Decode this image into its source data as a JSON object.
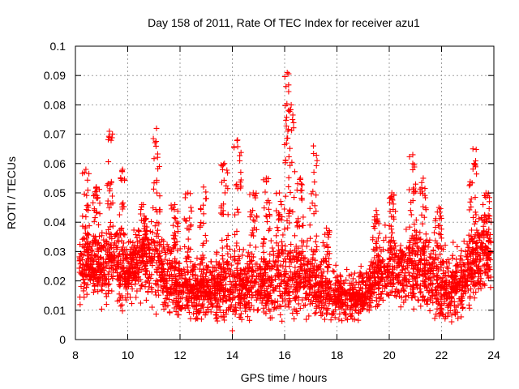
{
  "chart_data": {
    "type": "scatter",
    "title": "Day 158 of 2011, Rate Of TEC Index for receiver azu1",
    "xlabel": "GPS time / hours",
    "ylabel": "ROTI / TECUs",
    "xlim": [
      8,
      24
    ],
    "ylim": [
      0,
      0.1
    ],
    "x_ticks": [
      "8",
      "10",
      "12",
      "14",
      "16",
      "18",
      "20",
      "22",
      "24"
    ],
    "y_ticks": [
      "0",
      "0.01",
      "0.02",
      "0.03",
      "0.04",
      "0.05",
      "0.06",
      "0.07",
      "0.08",
      "0.09",
      "0.1"
    ],
    "grid": true,
    "marker": "+",
    "color": "#ff0000",
    "profile_points": [
      [
        8.0,
        0.024
      ],
      [
        8.5,
        0.026
      ],
      [
        9.0,
        0.025
      ],
      [
        9.5,
        0.027
      ],
      [
        10.0,
        0.022
      ],
      [
        10.5,
        0.028
      ],
      [
        11.0,
        0.026
      ],
      [
        11.5,
        0.021
      ],
      [
        12.0,
        0.018
      ],
      [
        12.5,
        0.017
      ],
      [
        13.0,
        0.017
      ],
      [
        13.5,
        0.018
      ],
      [
        14.0,
        0.018
      ],
      [
        14.5,
        0.019
      ],
      [
        15.0,
        0.019
      ],
      [
        15.5,
        0.019
      ],
      [
        16.0,
        0.02
      ],
      [
        16.5,
        0.021
      ],
      [
        17.0,
        0.019
      ],
      [
        17.5,
        0.017
      ],
      [
        18.0,
        0.016
      ],
      [
        18.5,
        0.015
      ],
      [
        19.0,
        0.015
      ],
      [
        19.5,
        0.021
      ],
      [
        20.0,
        0.024
      ],
      [
        20.5,
        0.024
      ],
      [
        21.0,
        0.024
      ],
      [
        21.5,
        0.022
      ],
      [
        22.0,
        0.019
      ],
      [
        22.5,
        0.017
      ],
      [
        23.0,
        0.025
      ],
      [
        23.5,
        0.03
      ],
      [
        24.0,
        0.03
      ]
    ],
    "spread_points": [
      [
        8.0,
        0.007
      ],
      [
        9.0,
        0.008
      ],
      [
        10.0,
        0.008
      ],
      [
        11.0,
        0.009
      ],
      [
        12.0,
        0.007
      ],
      [
        13.0,
        0.007
      ],
      [
        14.0,
        0.008
      ],
      [
        15.0,
        0.008
      ],
      [
        16.0,
        0.009
      ],
      [
        17.0,
        0.008
      ],
      [
        18.0,
        0.006
      ],
      [
        19.0,
        0.005
      ],
      [
        20.0,
        0.008
      ],
      [
        21.0,
        0.009
      ],
      [
        22.0,
        0.008
      ],
      [
        23.0,
        0.009
      ],
      [
        24.0,
        0.009
      ]
    ],
    "point_count": 3200,
    "peaks": [
      {
        "x": 8.4,
        "y": 0.058
      },
      {
        "x": 8.8,
        "y": 0.052
      },
      {
        "x": 9.3,
        "y": 0.071
      },
      {
        "x": 9.8,
        "y": 0.058
      },
      {
        "x": 10.6,
        "y": 0.046
      },
      {
        "x": 11.1,
        "y": 0.072
      },
      {
        "x": 11.8,
        "y": 0.046
      },
      {
        "x": 12.3,
        "y": 0.05
      },
      {
        "x": 12.9,
        "y": 0.052
      },
      {
        "x": 13.7,
        "y": 0.06
      },
      {
        "x": 14.2,
        "y": 0.068
      },
      {
        "x": 14.8,
        "y": 0.05
      },
      {
        "x": 15.3,
        "y": 0.055
      },
      {
        "x": 15.8,
        "y": 0.05
      },
      {
        "x": 16.1,
        "y": 0.091
      },
      {
        "x": 16.25,
        "y": 0.08
      },
      {
        "x": 16.6,
        "y": 0.055
      },
      {
        "x": 17.1,
        "y": 0.066
      },
      {
        "x": 17.6,
        "y": 0.038
      },
      {
        "x": 19.5,
        "y": 0.044
      },
      {
        "x": 20.1,
        "y": 0.05
      },
      {
        "x": 20.9,
        "y": 0.063
      },
      {
        "x": 21.3,
        "y": 0.055
      },
      {
        "x": 21.9,
        "y": 0.045
      },
      {
        "x": 23.2,
        "y": 0.065
      },
      {
        "x": 23.7,
        "y": 0.05
      }
    ],
    "sparse_points": [
      {
        "x": 14.0,
        "y": 0.003
      },
      {
        "x": 18.6,
        "y": 0.007
      },
      {
        "x": 12.6,
        "y": 0.007
      }
    ]
  }
}
